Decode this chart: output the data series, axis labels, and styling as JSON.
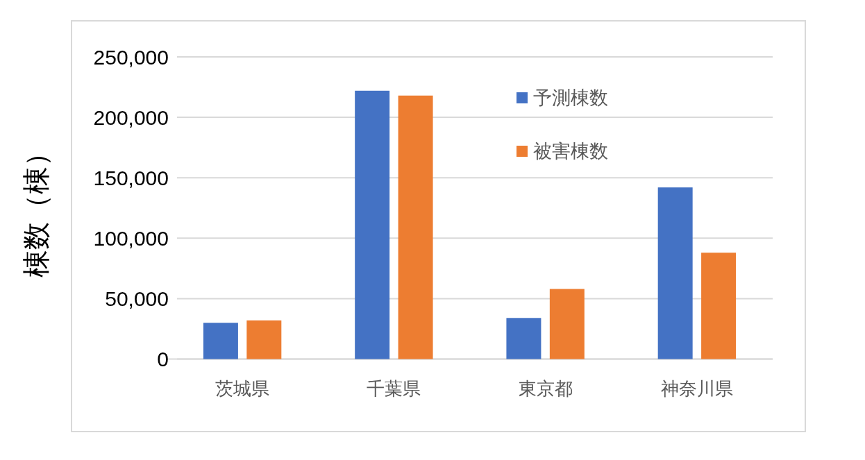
{
  "chart_data": {
    "type": "bar",
    "ylabel": "棟数（棟）",
    "categories": [
      "茨城県",
      "千葉県",
      "東京都",
      "神奈川県"
    ],
    "series": [
      {
        "name": "予測棟数",
        "color": "#4472c4",
        "values": [
          30000,
          222000,
          34000,
          142000
        ]
      },
      {
        "name": "被害棟数",
        "color": "#ed7d31",
        "values": [
          32000,
          218000,
          58000,
          88000
        ]
      }
    ],
    "ylim": [
      0,
      250000
    ],
    "yticks": [
      0,
      {
        "value": 50000,
        "label": "50,000"
      },
      {
        "value": 100000,
        "label": "100,000"
      },
      {
        "value": 150000,
        "label": "150,000"
      },
      {
        "value": 200000,
        "label": "200,000"
      },
      {
        "value": 250000,
        "label": "250,000"
      }
    ],
    "grid": "y",
    "legend": "top right"
  }
}
